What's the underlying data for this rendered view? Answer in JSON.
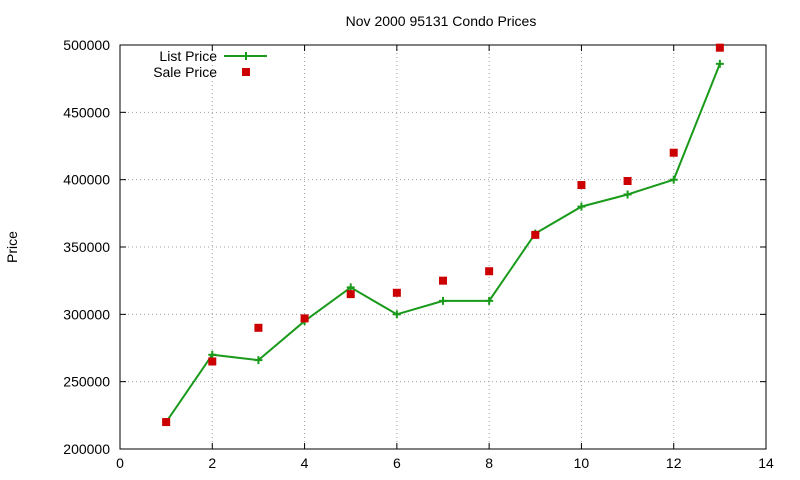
{
  "chart_data": {
    "type": "line",
    "title": "Nov 2000 95131 Condo Prices",
    "xlabel": "",
    "ylabel": "Price",
    "xlim": [
      0,
      14
    ],
    "ylim": [
      200000,
      500000
    ],
    "xticks": [
      0,
      2,
      4,
      6,
      8,
      10,
      12,
      14
    ],
    "yticks": [
      200000,
      250000,
      300000,
      350000,
      400000,
      450000,
      500000
    ],
    "grid": true,
    "legend_position": "top-left",
    "series": [
      {
        "name": "List Price",
        "style": "lines+points",
        "marker": "plus",
        "color": "#1a9a1a",
        "x": [
          1,
          2,
          3,
          4,
          5,
          6,
          7,
          8,
          9,
          10,
          11,
          12,
          13
        ],
        "y": [
          220000,
          270000,
          266000,
          295000,
          320000,
          300000,
          310000,
          310000,
          360000,
          380000,
          389000,
          400000,
          486000
        ]
      },
      {
        "name": "Sale Price",
        "style": "points",
        "marker": "square",
        "color": "#cc0000",
        "x": [
          1,
          2,
          3,
          4,
          5,
          6,
          7,
          8,
          9,
          10,
          11,
          12,
          13
        ],
        "y": [
          220000,
          265000,
          290000,
          297000,
          315000,
          316000,
          325000,
          332000,
          359000,
          396000,
          399000,
          420000,
          498000
        ]
      }
    ]
  }
}
